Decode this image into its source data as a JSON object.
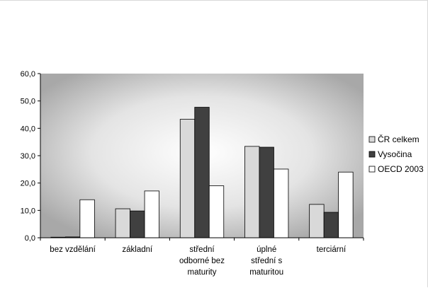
{
  "chart_data": {
    "type": "bar",
    "categories": [
      [
        "bez vzdělání"
      ],
      [
        "základní"
      ],
      [
        "střední",
        "odborné bez",
        "maturity"
      ],
      [
        "úplné",
        "střední s",
        "maturitou"
      ],
      [
        "terciární"
      ]
    ],
    "series": [
      {
        "name": "ČR celkem",
        "values": [
          0.0,
          10.6,
          43.3,
          33.4,
          12.2
        ],
        "color": "#d9d9d9"
      },
      {
        "name": "Vysočina",
        "values": [
          0.3,
          9.8,
          47.7,
          33.1,
          9.3
        ],
        "color": "#404040"
      },
      {
        "name": "OECD 2003",
        "values": [
          13.9,
          17.1,
          19.0,
          25.1,
          24.0
        ],
        "color": "#ffffff"
      }
    ],
    "y_ticks": [
      "0,0",
      "10,0",
      "20,0",
      "30,0",
      "40,0",
      "50,0",
      "60,0"
    ],
    "ylim": [
      0,
      60
    ],
    "grid": false,
    "legend": "right",
    "plot_background": "radial-gray-gradient"
  }
}
